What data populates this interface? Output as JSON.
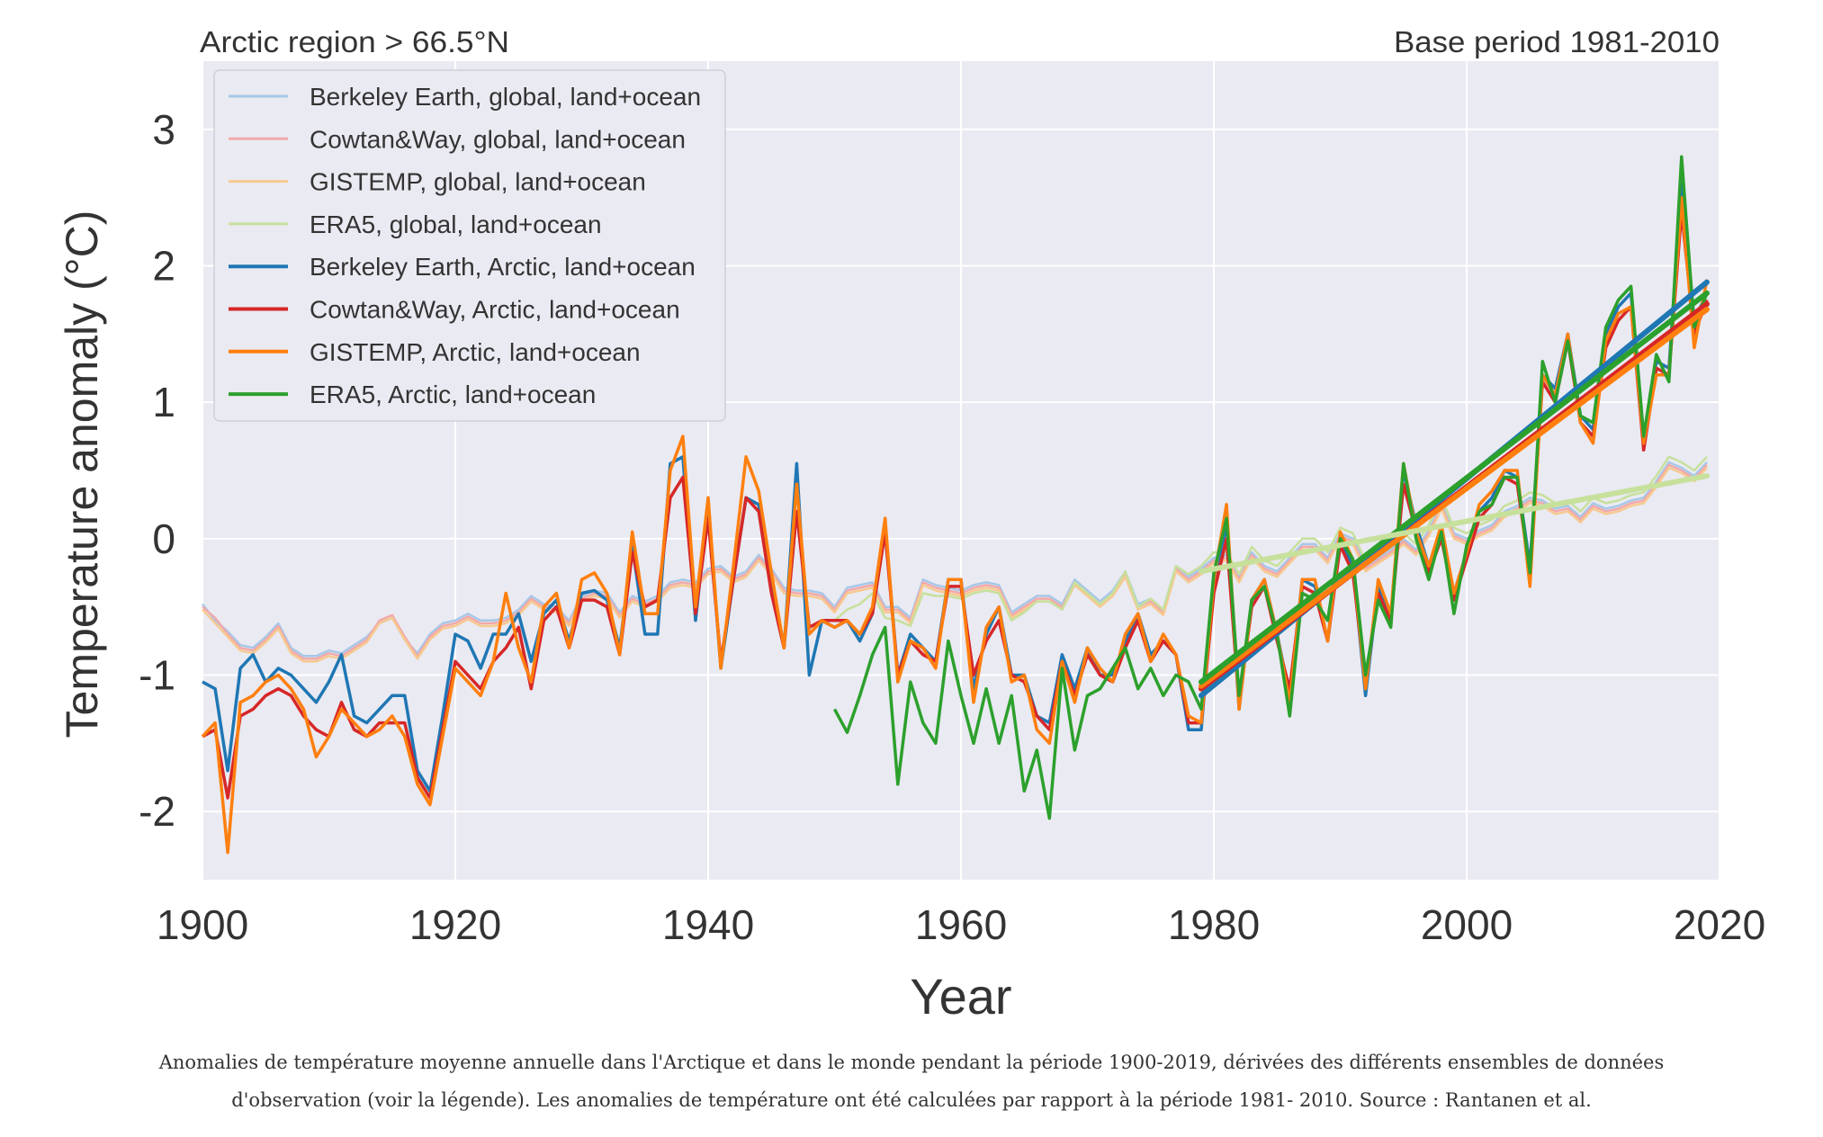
{
  "chart_data": {
    "type": "line",
    "title_left": "Arctic region > 66.5°N",
    "title_right": "Base period 1981-2010",
    "xlabel": "Year",
    "ylabel": "Temperature anomaly (°C)",
    "xlim": [
      1900,
      2020
    ],
    "ylim": [
      -2.5,
      3.5
    ],
    "x_ticks": [
      1900,
      1920,
      1940,
      1960,
      1980,
      2000,
      2020
    ],
    "y_ticks": [
      -2,
      -1,
      0,
      1,
      2,
      3
    ],
    "grid": true,
    "legend_position": "top-left",
    "x_start": 1900,
    "x_end": 2019,
    "series": [
      {
        "name": "Berkeley Earth, global, land+ocean",
        "color": "#a6c8e8",
        "width": 2.5,
        "x_start": 1900,
        "values": [
          -0.48,
          -0.6,
          -0.68,
          -0.78,
          -0.8,
          -0.72,
          -0.62,
          -0.8,
          -0.86,
          -0.86,
          -0.82,
          -0.84,
          -0.78,
          -0.72,
          -0.62,
          -0.58,
          -0.74,
          -0.84,
          -0.7,
          -0.62,
          -0.6,
          -0.55,
          -0.6,
          -0.6,
          -0.58,
          -0.52,
          -0.42,
          -0.48,
          -0.5,
          -0.6,
          -0.42,
          -0.38,
          -0.4,
          -0.54,
          -0.42,
          -0.46,
          -0.42,
          -0.32,
          -0.3,
          -0.32,
          -0.22,
          -0.2,
          -0.28,
          -0.24,
          -0.12,
          -0.22,
          -0.36,
          -0.38,
          -0.38,
          -0.4,
          -0.5,
          -0.36,
          -0.34,
          -0.32,
          -0.5,
          -0.5,
          -0.58,
          -0.3,
          -0.34,
          -0.36,
          -0.38,
          -0.34,
          -0.32,
          -0.34,
          -0.54,
          -0.48,
          -0.42,
          -0.42,
          -0.48,
          -0.3,
          -0.38,
          -0.46,
          -0.38,
          -0.24,
          -0.48,
          -0.44,
          -0.52,
          -0.2,
          -0.28,
          -0.22,
          -0.14,
          -0.12,
          -0.28,
          -0.1,
          -0.2,
          -0.24,
          -0.14,
          -0.04,
          -0.04,
          -0.14,
          0.04,
          0.0,
          -0.2,
          -0.14,
          -0.08,
          0.0,
          -0.08,
          0.06,
          0.26,
          0.04,
          0.0,
          0.06,
          0.1,
          0.2,
          0.24,
          0.3,
          0.28,
          0.22,
          0.24,
          0.16,
          0.26,
          0.22,
          0.24,
          0.28,
          0.3,
          0.42,
          0.56,
          0.52,
          0.46,
          0.56
        ]
      },
      {
        "name": "Cowtan&Way, global, land+ocean",
        "color": "#f2a9a9",
        "width": 2.5,
        "x_start": 1900,
        "values": [
          -0.5,
          -0.58,
          -0.7,
          -0.8,
          -0.82,
          -0.74,
          -0.64,
          -0.82,
          -0.88,
          -0.88,
          -0.84,
          -0.86,
          -0.8,
          -0.74,
          -0.6,
          -0.56,
          -0.72,
          -0.86,
          -0.72,
          -0.64,
          -0.62,
          -0.57,
          -0.62,
          -0.62,
          -0.6,
          -0.54,
          -0.44,
          -0.5,
          -0.52,
          -0.62,
          -0.44,
          -0.4,
          -0.42,
          -0.56,
          -0.44,
          -0.48,
          -0.44,
          -0.34,
          -0.32,
          -0.34,
          -0.24,
          -0.22,
          -0.3,
          -0.26,
          -0.14,
          -0.24,
          -0.38,
          -0.4,
          -0.4,
          -0.42,
          -0.52,
          -0.38,
          -0.36,
          -0.34,
          -0.52,
          -0.52,
          -0.6,
          -0.32,
          -0.36,
          -0.38,
          -0.4,
          -0.36,
          -0.34,
          -0.36,
          -0.56,
          -0.5,
          -0.44,
          -0.44,
          -0.5,
          -0.32,
          -0.4,
          -0.48,
          -0.4,
          -0.26,
          -0.5,
          -0.46,
          -0.54,
          -0.22,
          -0.3,
          -0.24,
          -0.16,
          -0.14,
          -0.3,
          -0.12,
          -0.22,
          -0.26,
          -0.16,
          -0.06,
          -0.06,
          -0.16,
          0.02,
          -0.02,
          -0.22,
          -0.16,
          -0.1,
          -0.02,
          -0.1,
          0.04,
          0.24,
          0.02,
          -0.02,
          0.04,
          0.08,
          0.18,
          0.22,
          0.28,
          0.26,
          0.2,
          0.22,
          0.14,
          0.24,
          0.2,
          0.22,
          0.26,
          0.28,
          0.4,
          0.54,
          0.5,
          0.44,
          0.54
        ]
      },
      {
        "name": "GISTEMP, global, land+ocean",
        "color": "#f7c98f",
        "width": 2.5,
        "x_start": 1900,
        "values": [
          -0.52,
          -0.62,
          -0.72,
          -0.82,
          -0.84,
          -0.76,
          -0.66,
          -0.84,
          -0.9,
          -0.9,
          -0.86,
          -0.88,
          -0.82,
          -0.76,
          -0.62,
          -0.58,
          -0.74,
          -0.88,
          -0.74,
          -0.66,
          -0.64,
          -0.59,
          -0.64,
          -0.64,
          -0.62,
          -0.56,
          -0.46,
          -0.52,
          -0.54,
          -0.64,
          -0.46,
          -0.42,
          -0.44,
          -0.58,
          -0.46,
          -0.5,
          -0.46,
          -0.36,
          -0.34,
          -0.36,
          -0.26,
          -0.24,
          -0.32,
          -0.28,
          -0.16,
          -0.26,
          -0.4,
          -0.42,
          -0.42,
          -0.44,
          -0.54,
          -0.4,
          -0.38,
          -0.36,
          -0.54,
          -0.54,
          -0.62,
          -0.34,
          -0.38,
          -0.4,
          -0.42,
          -0.38,
          -0.36,
          -0.38,
          -0.58,
          -0.52,
          -0.46,
          -0.46,
          -0.52,
          -0.34,
          -0.42,
          -0.5,
          -0.42,
          -0.28,
          -0.52,
          -0.48,
          -0.56,
          -0.24,
          -0.32,
          -0.26,
          -0.18,
          -0.16,
          -0.32,
          -0.14,
          -0.24,
          -0.28,
          -0.18,
          -0.08,
          -0.08,
          -0.18,
          0.0,
          -0.04,
          -0.24,
          -0.18,
          -0.12,
          -0.04,
          -0.12,
          0.02,
          0.22,
          0.0,
          -0.04,
          0.02,
          0.06,
          0.16,
          0.2,
          0.26,
          0.24,
          0.18,
          0.2,
          0.12,
          0.22,
          0.18,
          0.2,
          0.24,
          0.26,
          0.38,
          0.52,
          0.48,
          0.42,
          0.52
        ]
      },
      {
        "name": "ERA5, global, land+ocean",
        "color": "#c7e09c",
        "width": 2.5,
        "x_start": 1950,
        "values": [
          -0.6,
          -0.52,
          -0.48,
          -0.4,
          -0.58,
          -0.6,
          -0.64,
          -0.4,
          -0.42,
          -0.42,
          -0.44,
          -0.4,
          -0.38,
          -0.4,
          -0.6,
          -0.54,
          -0.46,
          -0.46,
          -0.52,
          -0.32,
          -0.4,
          -0.48,
          -0.4,
          -0.24,
          -0.5,
          -0.44,
          -0.52,
          -0.2,
          -0.26,
          -0.2,
          -0.1,
          -0.1,
          -0.26,
          -0.06,
          -0.16,
          -0.2,
          -0.1,
          0.0,
          0.0,
          -0.1,
          0.08,
          0.04,
          -0.16,
          -0.1,
          -0.04,
          0.04,
          -0.04,
          0.1,
          0.3,
          0.08,
          0.04,
          0.1,
          0.14,
          0.24,
          0.28,
          0.34,
          0.32,
          0.26,
          0.28,
          0.2,
          0.3,
          0.26,
          0.28,
          0.32,
          0.34,
          0.46,
          0.6,
          0.56,
          0.5,
          0.6
        ]
      },
      {
        "name": "Berkeley Earth, Arctic, land+ocean",
        "color": "#1f77b4",
        "width": 3.5,
        "x_start": 1900,
        "values": [
          -1.05,
          -1.1,
          -1.7,
          -0.95,
          -0.85,
          -1.05,
          -0.95,
          -1.0,
          -1.1,
          -1.2,
          -1.05,
          -0.85,
          -1.3,
          -1.35,
          -1.25,
          -1.15,
          -1.15,
          -1.7,
          -1.85,
          -1.3,
          -0.7,
          -0.75,
          -0.95,
          -0.7,
          -0.7,
          -0.55,
          -0.9,
          -0.55,
          -0.45,
          -0.75,
          -0.4,
          -0.38,
          -0.45,
          -0.8,
          -0.05,
          -0.7,
          -0.7,
          0.55,
          0.6,
          -0.6,
          0.25,
          -0.95,
          -0.3,
          0.3,
          0.25,
          -0.35,
          -0.8,
          0.55,
          -1.0,
          -0.6,
          -0.65,
          -0.6,
          -0.75,
          -0.55,
          0.1,
          -1.0,
          -0.7,
          -0.8,
          -0.9,
          -0.3,
          -0.3,
          -1.1,
          -0.7,
          -0.5,
          -1.0,
          -1.0,
          -1.3,
          -1.35,
          -0.85,
          -1.1,
          -0.8,
          -1.0,
          -1.0,
          -0.75,
          -0.55,
          -0.85,
          -0.75,
          -0.85,
          -1.4,
          -1.4,
          -0.3,
          0.1,
          -1.25,
          -0.45,
          -0.3,
          -0.7,
          -1.15,
          -0.3,
          -0.35,
          -0.75,
          0.0,
          -0.2,
          -1.15,
          -0.35,
          -0.6,
          0.5,
          0.1,
          -0.2,
          0.05,
          -0.4,
          -0.1,
          0.2,
          0.3,
          0.5,
          0.45,
          -0.2,
          1.2,
          1.1,
          1.5,
          0.9,
          0.8,
          1.5,
          1.7,
          1.8,
          0.7,
          1.3,
          1.25,
          2.6,
          1.6,
          1.8
        ]
      },
      {
        "name": "Cowtan&Way, Arctic, land+ocean",
        "color": "#d62728",
        "width": 3.5,
        "x_start": 1900,
        "values": [
          -1.45,
          -1.4,
          -1.9,
          -1.3,
          -1.25,
          -1.15,
          -1.1,
          -1.15,
          -1.3,
          -1.4,
          -1.45,
          -1.2,
          -1.4,
          -1.45,
          -1.35,
          -1.35,
          -1.35,
          -1.75,
          -1.9,
          -1.4,
          -0.9,
          -1.0,
          -1.1,
          -0.9,
          -0.8,
          -0.65,
          -1.1,
          -0.6,
          -0.5,
          -0.8,
          -0.45,
          -0.45,
          -0.5,
          -0.85,
          -0.1,
          -0.5,
          -0.45,
          0.3,
          0.45,
          -0.55,
          0.15,
          -0.9,
          -0.3,
          0.3,
          0.2,
          -0.4,
          -0.8,
          0.2,
          -0.65,
          -0.6,
          -0.6,
          -0.6,
          -0.7,
          -0.55,
          0.05,
          -1.0,
          -0.75,
          -0.85,
          -0.9,
          -0.35,
          -0.35,
          -1.0,
          -0.75,
          -0.6,
          -1.0,
          -1.05,
          -1.3,
          -1.4,
          -0.9,
          -1.15,
          -0.85,
          -1.0,
          -1.05,
          -0.8,
          -0.6,
          -0.9,
          -0.75,
          -0.85,
          -1.35,
          -1.35,
          -0.4,
          0.0,
          -1.2,
          -0.5,
          -0.35,
          -0.75,
          -1.1,
          -0.35,
          -0.4,
          -0.75,
          -0.05,
          -0.25,
          -1.05,
          -0.4,
          -0.6,
          0.4,
          0.05,
          -0.25,
          0.0,
          -0.45,
          -0.15,
          0.15,
          0.25,
          0.45,
          0.4,
          -0.25,
          1.15,
          1.0,
          1.45,
          0.85,
          0.75,
          1.4,
          1.6,
          1.7,
          0.65,
          1.25,
          1.2,
          2.4,
          1.5,
          1.75
        ]
      },
      {
        "name": "GISTEMP, Arctic, land+ocean",
        "color": "#ff7f0e",
        "width": 3.5,
        "x_start": 1900,
        "values": [
          -1.45,
          -1.35,
          -2.3,
          -1.2,
          -1.15,
          -1.05,
          -1.0,
          -1.1,
          -1.25,
          -1.6,
          -1.45,
          -1.25,
          -1.35,
          -1.45,
          -1.4,
          -1.3,
          -1.45,
          -1.8,
          -1.95,
          -1.45,
          -0.95,
          -1.05,
          -1.15,
          -0.9,
          -0.4,
          -0.8,
          -1.05,
          -0.5,
          -0.4,
          -0.8,
          -0.3,
          -0.25,
          -0.4,
          -0.85,
          0.05,
          -0.55,
          -0.55,
          0.5,
          0.75,
          -0.5,
          0.3,
          -0.95,
          -0.2,
          0.6,
          0.35,
          -0.25,
          -0.8,
          0.4,
          -0.7,
          -0.6,
          -0.65,
          -0.6,
          -0.7,
          -0.5,
          0.15,
          -1.05,
          -0.75,
          -0.8,
          -0.95,
          -0.3,
          -0.3,
          -1.2,
          -0.65,
          -0.5,
          -1.05,
          -1.0,
          -1.4,
          -1.5,
          -0.9,
          -1.2,
          -0.8,
          -0.95,
          -1.05,
          -0.7,
          -0.55,
          -0.9,
          -0.7,
          -0.85,
          -1.3,
          -1.35,
          -0.3,
          0.25,
          -1.25,
          -0.45,
          -0.3,
          -0.7,
          -1.2,
          -0.3,
          -0.3,
          -0.75,
          0.05,
          -0.15,
          -1.1,
          -0.3,
          -0.55,
          0.55,
          0.05,
          -0.2,
          0.1,
          -0.4,
          -0.1,
          0.25,
          0.35,
          0.5,
          0.5,
          -0.35,
          1.2,
          1.05,
          1.5,
          0.85,
          0.7,
          1.45,
          1.65,
          1.7,
          0.7,
          1.2,
          1.2,
          2.5,
          1.4,
          1.9
        ]
      },
      {
        "name": "ERA5, Arctic, land+ocean",
        "color": "#2ca02c",
        "width": 3.5,
        "x_start": 1950,
        "values": [
          -1.25,
          -1.42,
          -1.15,
          -0.85,
          -0.65,
          -1.8,
          -1.05,
          -1.35,
          -1.5,
          -0.75,
          -1.15,
          -1.5,
          -1.1,
          -1.5,
          -1.15,
          -1.85,
          -1.55,
          -2.05,
          -0.95,
          -1.55,
          -1.15,
          -1.1,
          -0.95,
          -0.8,
          -1.1,
          -0.95,
          -1.15,
          -1.0,
          -1.05,
          -1.25,
          -0.25,
          0.15,
          -1.15,
          -0.45,
          -0.35,
          -0.7,
          -1.3,
          -0.4,
          -0.45,
          -0.6,
          0.0,
          -0.15,
          -1.0,
          -0.45,
          -0.65,
          0.55,
          0.0,
          -0.3,
          0.05,
          -0.55,
          -0.05,
          0.2,
          0.25,
          0.45,
          0.45,
          -0.25,
          1.3,
          1.0,
          1.45,
          0.9,
          0.85,
          1.55,
          1.75,
          1.85,
          0.75,
          1.35,
          1.15,
          2.8,
          1.55,
          1.8
        ]
      }
    ],
    "trend_lines": [
      {
        "color": "#1f77b4",
        "x": [
          1979,
          2019
        ],
        "y": [
          -1.15,
          1.88
        ]
      },
      {
        "color": "#d62728",
        "x": [
          1979,
          2019
        ],
        "y": [
          -1.1,
          1.72
        ]
      },
      {
        "color": "#ff7f0e",
        "x": [
          1979,
          2019
        ],
        "y": [
          -1.08,
          1.68
        ]
      },
      {
        "color": "#2ca02c",
        "x": [
          1979,
          2019
        ],
        "y": [
          -1.05,
          1.8
        ]
      },
      {
        "color": "#c7e09c",
        "x": [
          1979,
          2019
        ],
        "y": [
          -0.24,
          0.46
        ]
      }
    ]
  },
  "caption": {
    "line1": "Anomalies de température moyenne annuelle dans l'Arctique et dans le monde pendant la période 1900-2019, dérivées des différents ensembles de données",
    "line2": "d'observation (voir la légende). Les anomalies de température ont été calculées par rapport à la période 1981- 2010. Source : Rantanen et al."
  }
}
